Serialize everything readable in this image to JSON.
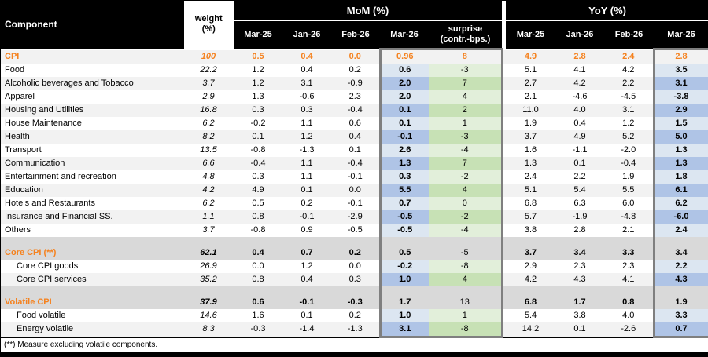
{
  "header": {
    "component": "Component",
    "weight": "weight\n(%)",
    "mom_group": "MoM (%)",
    "yoy_group": "YoY (%)",
    "mom_cols": [
      "Mar-25",
      "Jan-26",
      "Feb-26",
      "Mar-26",
      "surprise\n(contr.-bps.)"
    ],
    "yoy_cols": [
      "Mar-25",
      "Jan-26",
      "Feb-26",
      "Mar-26"
    ]
  },
  "footnote": "(**) Measure excluding volatile components.",
  "colors": {
    "header_bg": "#000000",
    "header_text": "#FFFFFF",
    "accent_orange": "#F5821F",
    "row_white": "#FFFFFF",
    "row_light": "#F2F2F2",
    "section_gray": "#D9D9D9",
    "blue_light": "#DCE6F1",
    "blue_mid": "#AFC4E6",
    "green_light": "#E2EFDA",
    "green_mid": "#C7E1B5",
    "box_border": "#7F7F7F"
  },
  "chart_data": {
    "type": "table",
    "columns": [
      "Component",
      "weight (%)",
      "MoM Mar-25",
      "MoM Jan-26",
      "MoM Feb-26",
      "MoM Mar-26",
      "MoM surprise (contr.-bps.)",
      "YoY Mar-25",
      "YoY Jan-26",
      "YoY Feb-26",
      "YoY Mar-26"
    ],
    "rows": [
      {
        "component": "CPI",
        "kind": "total",
        "weight": "100",
        "mom": [
          "0.5",
          "0.4",
          "0.0",
          "0.96",
          "8"
        ],
        "yoy": [
          "4.9",
          "2.8",
          "2.4",
          "2.8"
        ]
      },
      {
        "component": "Food",
        "kind": "item",
        "weight": "22.2",
        "mom": [
          "1.2",
          "0.4",
          "0.2",
          "0.6",
          "-3"
        ],
        "yoy": [
          "5.1",
          "4.1",
          "4.2",
          "3.5"
        ]
      },
      {
        "component": "Alcoholic beverages and Tobacco",
        "kind": "item",
        "weight": "3.7",
        "mom": [
          "1.2",
          "3.1",
          "-0.9",
          "2.0",
          "7"
        ],
        "yoy": [
          "2.7",
          "4.2",
          "2.2",
          "3.1"
        ]
      },
      {
        "component": "Apparel",
        "kind": "item",
        "weight": "2.9",
        "mom": [
          "1.3",
          "-0.6",
          "2.3",
          "2.0",
          "4"
        ],
        "yoy": [
          "2.1",
          "-4.6",
          "-4.5",
          "-3.8"
        ]
      },
      {
        "component": "Housing and Utilities",
        "kind": "item",
        "weight": "16.8",
        "mom": [
          "0.3",
          "0.3",
          "-0.4",
          "0.1",
          "2"
        ],
        "yoy": [
          "11.0",
          "4.0",
          "3.1",
          "2.9"
        ]
      },
      {
        "component": "House Maintenance",
        "kind": "item",
        "weight": "6.2",
        "mom": [
          "-0.2",
          "1.1",
          "0.6",
          "0.1",
          "1"
        ],
        "yoy": [
          "1.9",
          "0.4",
          "1.2",
          "1.5"
        ]
      },
      {
        "component": "Health",
        "kind": "item",
        "weight": "8.2",
        "mom": [
          "0.1",
          "1.2",
          "0.4",
          "-0.1",
          "-3"
        ],
        "yoy": [
          "3.7",
          "4.9",
          "5.2",
          "5.0"
        ]
      },
      {
        "component": "Transport",
        "kind": "item",
        "weight": "13.5",
        "mom": [
          "-0.8",
          "-1.3",
          "0.1",
          "2.6",
          "-4"
        ],
        "yoy": [
          "1.6",
          "-1.1",
          "-2.0",
          "1.3"
        ]
      },
      {
        "component": "Communication",
        "kind": "item",
        "weight": "6.6",
        "mom": [
          "-0.4",
          "1.1",
          "-0.4",
          "1.3",
          "7"
        ],
        "yoy": [
          "1.3",
          "0.1",
          "-0.4",
          "1.3"
        ]
      },
      {
        "component": "Entertainment and recreation",
        "kind": "item",
        "weight": "4.8",
        "mom": [
          "0.3",
          "1.1",
          "-0.1",
          "0.3",
          "-2"
        ],
        "yoy": [
          "2.4",
          "2.2",
          "1.9",
          "1.8"
        ]
      },
      {
        "component": "Education",
        "kind": "item",
        "weight": "4.2",
        "mom": [
          "4.9",
          "0.1",
          "0.0",
          "5.5",
          "4"
        ],
        "yoy": [
          "5.1",
          "5.4",
          "5.5",
          "6.1"
        ]
      },
      {
        "component": "Hotels and Restaurants",
        "kind": "item",
        "weight": "6.2",
        "mom": [
          "0.5",
          "0.2",
          "-0.1",
          "0.7",
          "0"
        ],
        "yoy": [
          "6.8",
          "6.3",
          "6.0",
          "6.2"
        ]
      },
      {
        "component": "Insurance and Financial SS.",
        "kind": "item",
        "weight": "1.1",
        "mom": [
          "0.8",
          "-0.1",
          "-2.9",
          "-0.5",
          "-2"
        ],
        "yoy": [
          "5.7",
          "-1.9",
          "-4.8",
          "-6.0"
        ]
      },
      {
        "component": "Others",
        "kind": "item",
        "weight": "3.7",
        "mom": [
          "-0.8",
          "0.9",
          "-0.5",
          "-0.5",
          "-4"
        ],
        "yoy": [
          "3.8",
          "2.8",
          "2.1",
          "2.4"
        ]
      },
      {
        "kind": "separator"
      },
      {
        "component": "Core CPI (**)",
        "kind": "section",
        "weight": "62.1",
        "mom": [
          "0.4",
          "0.7",
          "0.2",
          "0.5",
          "-5"
        ],
        "yoy": [
          "3.7",
          "3.4",
          "3.3",
          "3.4"
        ]
      },
      {
        "component": "Core CPI goods",
        "kind": "subitem",
        "weight": "26.9",
        "mom": [
          "0.0",
          "1.2",
          "0.0",
          "-0.2",
          "-8"
        ],
        "yoy": [
          "2.9",
          "2.3",
          "2.3",
          "2.2"
        ]
      },
      {
        "component": "Core CPI services",
        "kind": "subitem",
        "weight": "35.2",
        "mom": [
          "0.8",
          "0.4",
          "0.3",
          "1.0",
          "4"
        ],
        "yoy": [
          "4.2",
          "4.3",
          "4.1",
          "4.3"
        ]
      },
      {
        "kind": "separator"
      },
      {
        "component": "Volatile CPI",
        "kind": "section",
        "weight": "37.9",
        "mom": [
          "0.6",
          "-0.1",
          "-0.3",
          "1.7",
          "13"
        ],
        "yoy": [
          "6.8",
          "1.7",
          "0.8",
          "1.9"
        ]
      },
      {
        "component": "Food volatile",
        "kind": "subitem",
        "weight": "14.6",
        "mom": [
          "1.6",
          "0.1",
          "0.2",
          "1.0",
          "1"
        ],
        "yoy": [
          "5.4",
          "3.8",
          "4.0",
          "3.3"
        ]
      },
      {
        "component": "Energy volatile",
        "kind": "subitem",
        "weight": "8.3",
        "mom": [
          "-0.3",
          "-1.4",
          "-1.3",
          "3.1",
          "-8"
        ],
        "yoy": [
          "14.2",
          "0.1",
          "-2.6",
          "0.7"
        ]
      }
    ]
  }
}
